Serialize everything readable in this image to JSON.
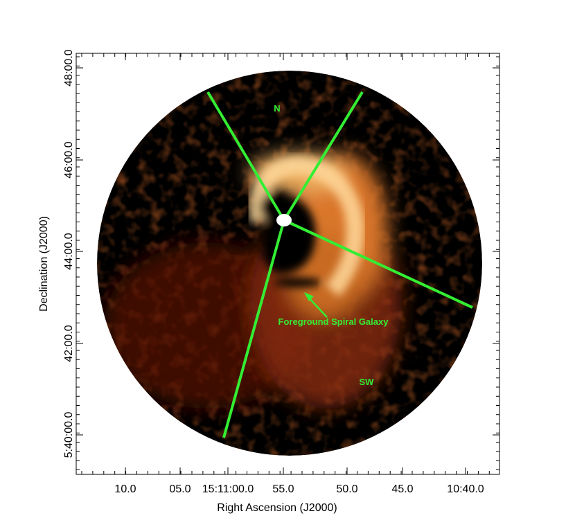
{
  "axes": {
    "x_label": "Right Ascension (J2000)",
    "y_label": "Declination (J2000)",
    "x_ticks": [
      "10.0",
      "05.0",
      "15:11:00.0",
      "55.0",
      "50.0",
      "45.0",
      "10:40.0"
    ],
    "y_ticks": [
      "48:00.0",
      "46:00.0",
      "44:00.0",
      "42:00.0",
      "5:40:00.0"
    ]
  },
  "annotations": {
    "north": "N",
    "southwest": "SW",
    "galaxy": "Foreground Spiral Galaxy"
  }
}
